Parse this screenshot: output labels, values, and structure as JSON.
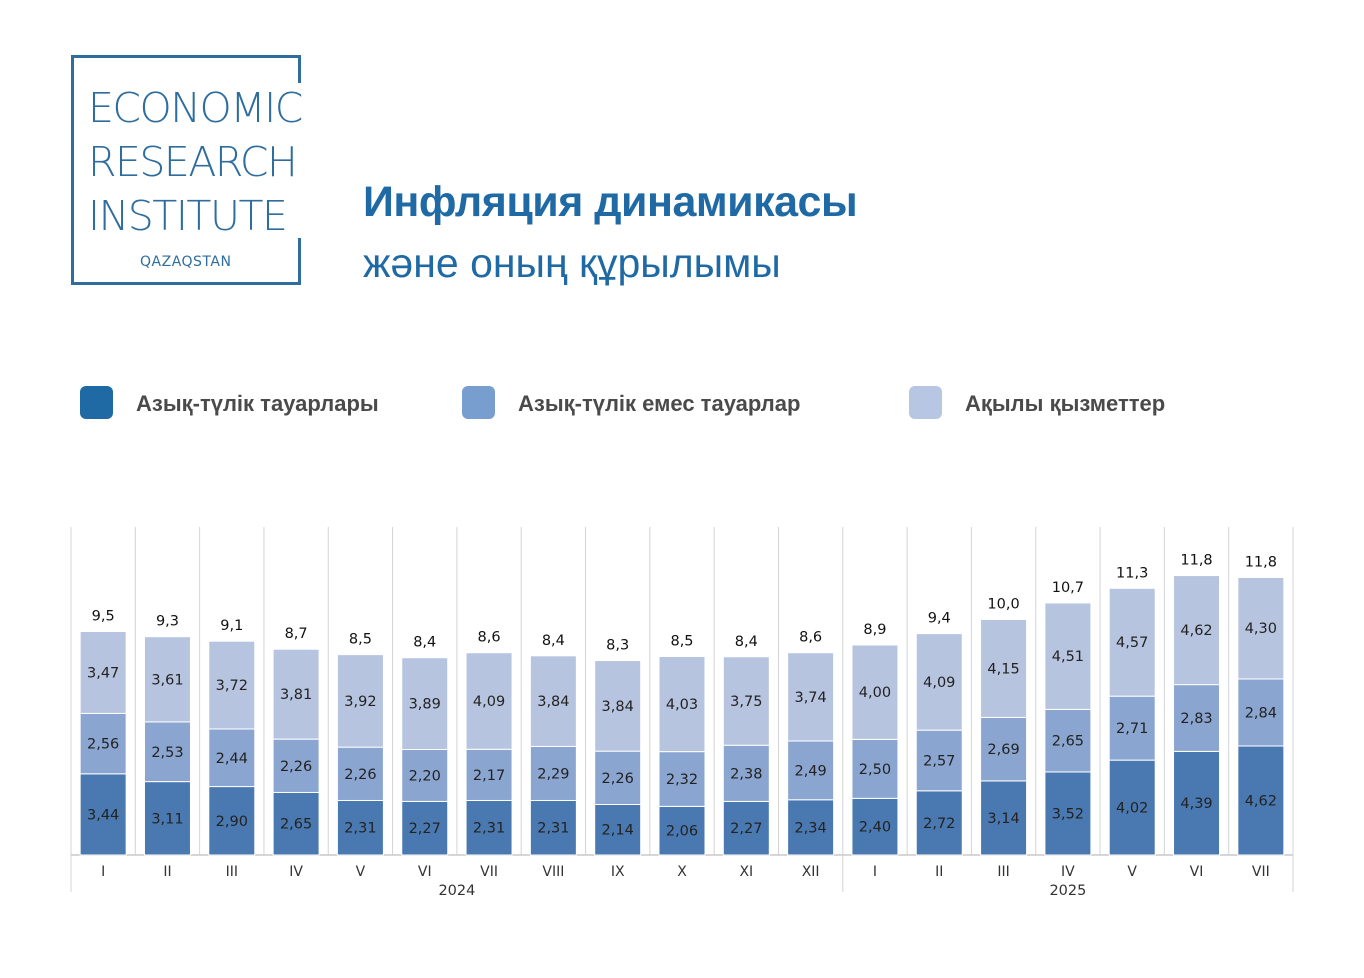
{
  "logo": {
    "line1": "ECONOMIC",
    "line2": "RESEARCH",
    "line3": "INSTITUTE",
    "subtitle": "QAZAQSTAN",
    "color": "#2f6d9e"
  },
  "heading": {
    "title": "Инфляция динамикасы",
    "subtitle": "және оның құрылымы"
  },
  "legend": [
    {
      "label": "Азық-түлік тауарлары",
      "color": "#1f6aa5"
    },
    {
      "label": "Азық-түлік емес тауарлар",
      "color": "#779ecf"
    },
    {
      "label": "Ақылы қызметтер",
      "color": "#b7c6e2"
    }
  ],
  "chart_data": {
    "type": "bar",
    "stacked": true,
    "categories": [
      "I",
      "II",
      "III",
      "IV",
      "V",
      "VI",
      "VII",
      "VIII",
      "IX",
      "X",
      "XI",
      "XII",
      "I",
      "II",
      "III",
      "IV",
      "V",
      "VI",
      "VII"
    ],
    "groups": [
      {
        "label": "2024",
        "count": 12
      },
      {
        "label": "2025",
        "count": 7
      }
    ],
    "series": [
      {
        "name": "Азық-түлік тауарлары",
        "color": "#4a79b1",
        "values": [
          3.44,
          3.11,
          2.9,
          2.65,
          2.31,
          2.27,
          2.31,
          2.31,
          2.14,
          2.06,
          2.27,
          2.34,
          2.4,
          2.72,
          3.14,
          3.52,
          4.02,
          4.39,
          4.62
        ],
        "labels": [
          "3,44",
          "3,11",
          "2,90",
          "2,65",
          "2,31",
          "2,27",
          "2,31",
          "2,31",
          "2,14",
          "2,06",
          "2,27",
          "2,34",
          "2,40",
          "2,72",
          "3,14",
          "3,52",
          "4,02",
          "4,39",
          "4,62"
        ]
      },
      {
        "name": "Азық-түлік емес тауарлар",
        "color": "#8aa6d0",
        "values": [
          2.56,
          2.53,
          2.44,
          2.26,
          2.26,
          2.2,
          2.17,
          2.29,
          2.26,
          2.32,
          2.38,
          2.49,
          2.5,
          2.57,
          2.69,
          2.65,
          2.71,
          2.83,
          2.84
        ],
        "labels": [
          "2,56",
          "2,53",
          "2,44",
          "2,26",
          "2,26",
          "2,20",
          "2,17",
          "2,29",
          "2,26",
          "2,32",
          "2,38",
          "2,49",
          "2,50",
          "2,57",
          "2,69",
          "2,65",
          "2,71",
          "2,83",
          "2,84"
        ]
      },
      {
        "name": "Ақылы қызметтер",
        "color": "#b7c4e0",
        "values": [
          3.47,
          3.61,
          3.72,
          3.81,
          3.92,
          3.89,
          4.09,
          3.84,
          3.84,
          4.03,
          3.75,
          3.74,
          4.0,
          4.09,
          4.15,
          4.51,
          4.57,
          4.62,
          4.3
        ],
        "labels": [
          "3,47",
          "3,61",
          "3,72",
          "3,81",
          "3,92",
          "3,89",
          "4,09",
          "3,84",
          "3,84",
          "4,03",
          "3,75",
          "3,74",
          "4,00",
          "4,09",
          "4,15",
          "4,51",
          "4,57",
          "4,62",
          "4,30"
        ]
      }
    ],
    "totals": [
      "9,5",
      "9,3",
      "9,1",
      "8,7",
      "8,5",
      "8,4",
      "8,6",
      "8,4",
      "8,3",
      "8,5",
      "8,4",
      "8,6",
      "8,9",
      "9,4",
      "10,0",
      "10,7",
      "11,3",
      "11,8",
      "11,8"
    ],
    "ylim": [
      0,
      12
    ],
    "grid": false,
    "legend_position": "top"
  }
}
